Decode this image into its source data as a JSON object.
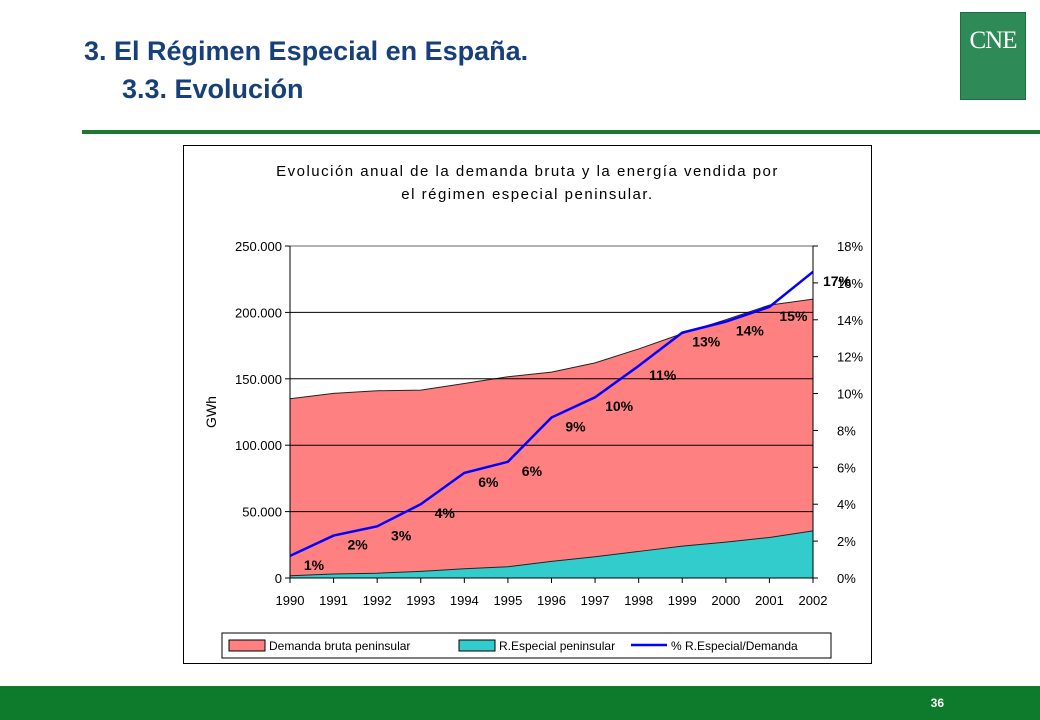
{
  "header": {
    "title": "3. El Régimen Especial en España.",
    "subtitle": "3.3. Evolución",
    "logo_text": "CNE"
  },
  "footer": {
    "page_number": "36"
  },
  "colors": {
    "title": "#17407a",
    "rule": "#1a7a2e",
    "footer": "#0e7a2b",
    "logo": "#2e8b57",
    "demanda": "#ff8080",
    "especial": "#33cccc",
    "ratio_line": "#0000ff"
  },
  "chart_data": {
    "type": "area",
    "title_line1": "Evolución anual de la demanda bruta y la energía vendida por",
    "title_line2": "el régimen especial peninsular.",
    "ylabel": "GWh",
    "x": [
      "1990",
      "1991",
      "1992",
      "1993",
      "1994",
      "1995",
      "1996",
      "1997",
      "1998",
      "1999",
      "2000",
      "2001",
      "2002"
    ],
    "ylim": [
      0,
      250000
    ],
    "y_ticks": [
      "0",
      "50.000",
      "100.000",
      "150.000",
      "200.000",
      "250.000"
    ],
    "y2lim": [
      0,
      18
    ],
    "y2_ticks": [
      "0%",
      "2%",
      "4%",
      "6%",
      "8%",
      "10%",
      "12%",
      "14%",
      "16%",
      "18%"
    ],
    "grid": true,
    "legend_position": "bottom",
    "series": [
      {
        "name": "Demanda bruta peninsular",
        "kind": "area",
        "axis": "left",
        "values": [
          135000,
          139000,
          141000,
          141500,
          146500,
          151500,
          155000,
          162000,
          172500,
          184000,
          194500,
          205500,
          210000
        ]
      },
      {
        "name": "R.Especial peninsular",
        "kind": "area",
        "axis": "left",
        "values": [
          1700,
          3000,
          3600,
          5000,
          7000,
          8500,
          12500,
          16000,
          20000,
          24000,
          27000,
          30500,
          35500
        ]
      },
      {
        "name": "% R.Especial/Demanda",
        "kind": "line",
        "axis": "right",
        "values": [
          1.2,
          2.3,
          2.8,
          4.0,
          5.7,
          6.3,
          8.7,
          9.8,
          11.5,
          13.3,
          13.9,
          14.7,
          16.6
        ],
        "labels": [
          "1%",
          "2%",
          "3%",
          "4%",
          "6%",
          "6%",
          "9%",
          "10%",
          "11%",
          "13%",
          "14%",
          "15%",
          "17%"
        ]
      }
    ]
  }
}
